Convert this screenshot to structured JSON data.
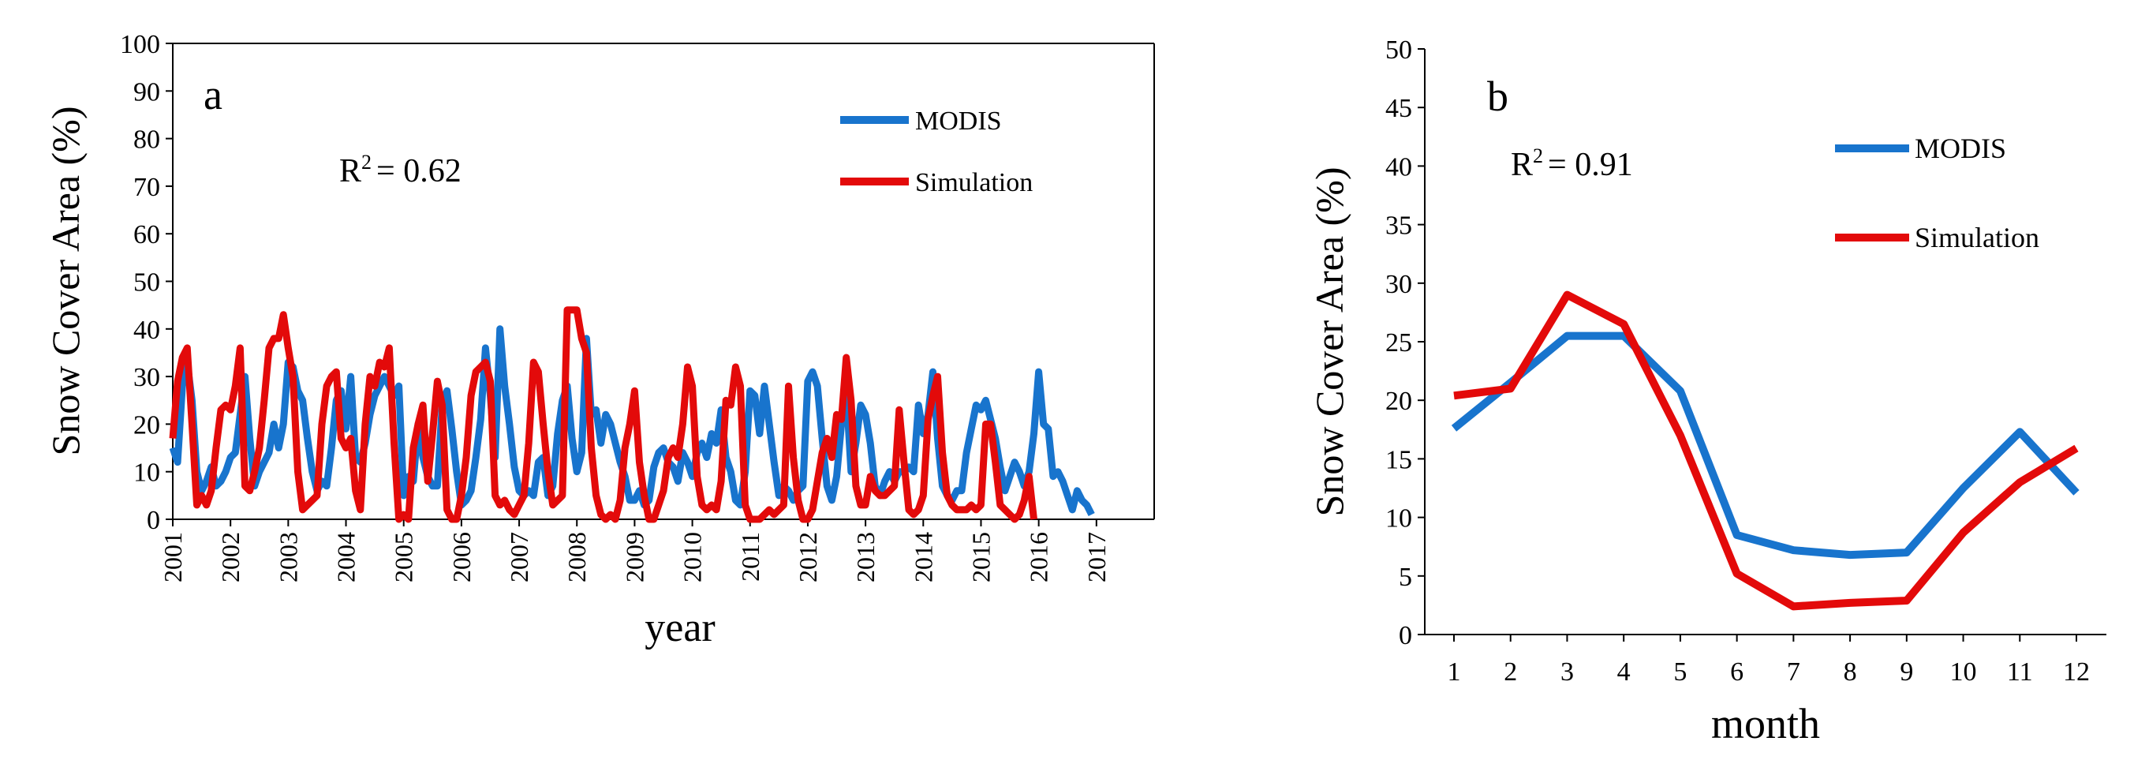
{
  "colors": {
    "modis": "#1874CD",
    "simulation": "#E30A0A",
    "axis": "#000000"
  },
  "chart_data": [
    {
      "type": "line",
      "panel_label": "a",
      "xlabel": "year",
      "ylabel": "Snow Cover Area (%)",
      "ylim": [
        0,
        100
      ],
      "yticks": [
        "0",
        "10",
        "20",
        "30",
        "40",
        "50",
        "60",
        "70",
        "80",
        "90",
        "100"
      ],
      "xlim": [
        2001,
        2018
      ],
      "xticks": [
        "2001",
        "2002",
        "2003",
        "2004",
        "2005",
        "2006",
        "2007",
        "2008",
        "2009",
        "2010",
        "2011",
        "2012",
        "2013",
        "2014",
        "2015",
        "2016",
        "2017"
      ],
      "r2_prefix": "R",
      "r2_exp": "2",
      "r2_value": "= 0.62",
      "legend_position": "top-right",
      "series": [
        {
          "name": "MODIS",
          "color": "#1874CD",
          "start": 2001.0,
          "step": 0.08333,
          "values": [
            15,
            12,
            28,
            33,
            25,
            10,
            6,
            8,
            11,
            7,
            8,
            10,
            13,
            14,
            22,
            30,
            17,
            7,
            10,
            12,
            14,
            20,
            15,
            20,
            33,
            32,
            27,
            25,
            17,
            10,
            6,
            8,
            7,
            15,
            25,
            27,
            19,
            30,
            13,
            12,
            16,
            22,
            26,
            28,
            30,
            28,
            26,
            28,
            5,
            9,
            8,
            20,
            13,
            9,
            7,
            7,
            24,
            27,
            19,
            10,
            3,
            4,
            6,
            13,
            21,
            36,
            26,
            13,
            40,
            28,
            20,
            11,
            6,
            5,
            6,
            5,
            12,
            13,
            5,
            7,
            18,
            25,
            28,
            17,
            10,
            14,
            38,
            22,
            23,
            16,
            22,
            20,
            16,
            12,
            9,
            4,
            4,
            6,
            3,
            4,
            11,
            14,
            15,
            12,
            11,
            8,
            14,
            12,
            9,
            14,
            16,
            13,
            18,
            16,
            23,
            13,
            10,
            4,
            3,
            10,
            27,
            26,
            18,
            28,
            20,
            12,
            5,
            7,
            6,
            4,
            6,
            7,
            29,
            31,
            28,
            17,
            7,
            4,
            9,
            20,
            27,
            10,
            16,
            24,
            22,
            16,
            7,
            5,
            8,
            10,
            8,
            10,
            10,
            11,
            10,
            24,
            18,
            22,
            31,
            17,
            7,
            5,
            4,
            6,
            6,
            14,
            19,
            24,
            23,
            25,
            21,
            17,
            11,
            6,
            9,
            12,
            10,
            7,
            10,
            18,
            31,
            20,
            19,
            9,
            10,
            8,
            5,
            2,
            6,
            4,
            3,
            1
          ]
        },
        {
          "name": "Simulation",
          "color": "#E30A0A",
          "start": 2001.0,
          "step": 0.08333,
          "values": [
            17,
            29,
            34,
            36,
            20,
            3,
            5,
            3,
            6,
            15,
            23,
            24,
            23,
            28,
            36,
            7,
            6,
            10,
            15,
            25,
            36,
            38,
            38,
            43,
            36,
            30,
            10,
            2,
            3,
            4,
            5,
            20,
            28,
            30,
            31,
            17,
            15,
            17,
            6,
            2,
            20,
            30,
            28,
            33,
            32,
            36,
            16,
            0,
            1,
            0,
            15,
            20,
            24,
            8,
            18,
            29,
            24,
            2,
            0,
            0,
            5,
            13,
            26,
            31,
            32,
            33,
            29,
            5,
            3,
            4,
            2,
            1,
            3,
            5,
            16,
            33,
            31,
            20,
            10,
            3,
            4,
            5,
            44,
            44,
            44,
            38,
            35,
            15,
            5,
            1,
            0,
            1,
            0,
            4,
            15,
            20,
            27,
            12,
            5,
            0,
            0,
            3,
            6,
            13,
            15,
            13,
            20,
            32,
            28,
            9,
            3,
            2,
            3,
            2,
            8,
            25,
            24,
            32,
            28,
            3,
            0,
            0,
            0,
            1,
            2,
            1,
            2,
            3,
            28,
            13,
            4,
            0,
            0,
            2,
            8,
            14,
            17,
            13,
            22,
            21,
            34,
            25,
            7,
            3,
            3,
            9,
            6,
            5,
            5,
            6,
            7,
            23,
            12,
            2,
            1,
            2,
            5,
            21,
            26,
            30,
            14,
            5,
            3,
            2,
            2,
            2,
            3,
            2,
            3,
            20,
            20,
            12,
            3,
            2,
            1,
            0,
            1,
            4,
            9,
            0
          ]
        }
      ]
    },
    {
      "type": "line",
      "panel_label": "b",
      "xlabel": "month",
      "ylabel": "Snow Cover Area (%)",
      "ylim": [
        0,
        50
      ],
      "yticks": [
        "0",
        "5",
        "10",
        "15",
        "20",
        "25",
        "30",
        "35",
        "40",
        "45",
        "50"
      ],
      "categories": [
        "1",
        "2",
        "3",
        "4",
        "5",
        "6",
        "7",
        "8",
        "9",
        "10",
        "11",
        "12"
      ],
      "r2_prefix": "R",
      "r2_exp": "2",
      "r2_value": "= 0.91",
      "legend_position": "top-right",
      "series": [
        {
          "name": "MODIS",
          "color": "#1874CD",
          "values": [
            17.6,
            21.5,
            25.5,
            25.5,
            20.8,
            8.5,
            7.2,
            6.8,
            7.0,
            12.5,
            17.3,
            12.1
          ]
        },
        {
          "name": "Simulation",
          "color": "#E30A0A",
          "values": [
            20.4,
            21.0,
            29.0,
            26.5,
            17.0,
            5.2,
            2.4,
            2.7,
            2.9,
            8.7,
            13.0,
            15.9
          ]
        }
      ]
    }
  ]
}
